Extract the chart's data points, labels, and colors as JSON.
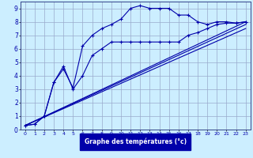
{
  "xlabel": "Graphe des températures (°c)",
  "background_color": "#cceeff",
  "grid_color": "#99aacc",
  "line_color": "#0000aa",
  "xlim": [
    -0.5,
    23.5
  ],
  "ylim": [
    0,
    9.5
  ],
  "xticks": [
    0,
    1,
    2,
    3,
    4,
    5,
    6,
    7,
    8,
    9,
    10,
    11,
    12,
    13,
    14,
    15,
    16,
    17,
    18,
    19,
    20,
    21,
    22,
    23
  ],
  "yticks": [
    0,
    1,
    2,
    3,
    4,
    5,
    6,
    7,
    8,
    9
  ],
  "line1_x": [
    0,
    1,
    2,
    3,
    4,
    5,
    6,
    7,
    8,
    9,
    10,
    11,
    12,
    13,
    14,
    15,
    16,
    17,
    18,
    19,
    20,
    21,
    22,
    23
  ],
  "line1_y": [
    0.3,
    0.4,
    1.0,
    3.5,
    4.5,
    3.1,
    6.2,
    7.0,
    7.5,
    7.8,
    8.2,
    9.0,
    9.2,
    9.0,
    9.0,
    9.0,
    8.5,
    8.5,
    8.0,
    7.8,
    8.0,
    8.0,
    7.9,
    8.0
  ],
  "line2_x": [
    0,
    1,
    2,
    3,
    4,
    5,
    6,
    7,
    8,
    9,
    10,
    11,
    12,
    13,
    14,
    15,
    16,
    17,
    18,
    19,
    20,
    21,
    22,
    23
  ],
  "line2_y": [
    0.3,
    0.4,
    1.0,
    3.5,
    4.7,
    3.0,
    4.0,
    5.5,
    6.0,
    6.5,
    6.5,
    6.5,
    6.5,
    6.5,
    6.5,
    6.5,
    6.5,
    7.0,
    7.2,
    7.5,
    7.8,
    7.9,
    7.9,
    8.0
  ],
  "line3_x": [
    0,
    23
  ],
  "line3_y": [
    0.3,
    8.0
  ],
  "line4_x": [
    0,
    23
  ],
  "line4_y": [
    0.3,
    8.0
  ],
  "line5_x": [
    0,
    23
  ],
  "line5_y": [
    0.3,
    8.0
  ]
}
